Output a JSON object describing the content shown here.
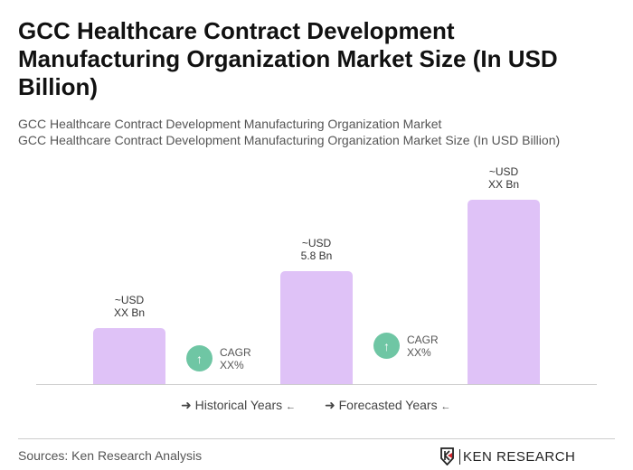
{
  "title": "GCC Healthcare Contract Development Manufacturing Organization Market Size (In USD Billion)",
  "subtitle1": "GCC Healthcare Contract Development Manufacturing Organization Market",
  "subtitle2": "GCC Healthcare Contract Development Manufacturing Organization Market Size (In USD Billion)",
  "chart_data": {
    "type": "bar",
    "values": [
      2.9,
      5.8,
      9.5
    ],
    "ylim": [
      0,
      10
    ],
    "bar_color": "#dfc2f7",
    "data_labels": [
      [
        "~USD",
        "XX Bn"
      ],
      [
        "~USD",
        "5.8 Bn"
      ],
      [
        "~USD",
        "XX Bn"
      ]
    ],
    "cagr": [
      {
        "label": "CAGR",
        "value": "XX%"
      },
      {
        "label": "CAGR",
        "value": "XX%"
      }
    ],
    "cagr_color": "#6fc6a4",
    "legend": [
      "Historical Years",
      "Forecasted Years"
    ],
    "grid": false
  },
  "footer": {
    "source": "Sources: Ken Research Analysis",
    "logo": "KEN RESEARCH"
  }
}
